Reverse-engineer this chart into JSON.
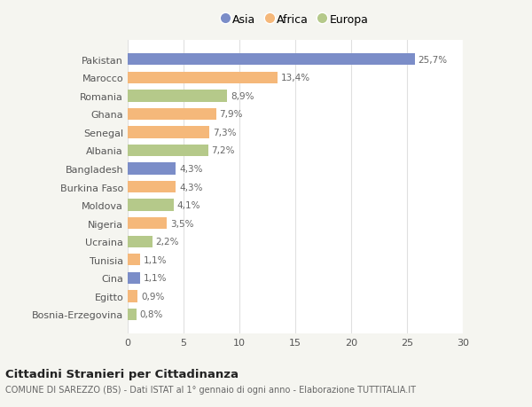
{
  "categories": [
    "Bosnia-Erzegovina",
    "Egitto",
    "Cina",
    "Tunisia",
    "Ucraina",
    "Nigeria",
    "Moldova",
    "Burkina Faso",
    "Bangladesh",
    "Albania",
    "Senegal",
    "Ghana",
    "Romania",
    "Marocco",
    "Pakistan"
  ],
  "values": [
    0.8,
    0.9,
    1.1,
    1.1,
    2.2,
    3.5,
    4.1,
    4.3,
    4.3,
    7.2,
    7.3,
    7.9,
    8.9,
    13.4,
    25.7
  ],
  "labels": [
    "0,8%",
    "0,9%",
    "1,1%",
    "1,1%",
    "2,2%",
    "3,5%",
    "4,1%",
    "4,3%",
    "4,3%",
    "7,2%",
    "7,3%",
    "7,9%",
    "8,9%",
    "13,4%",
    "25,7%"
  ],
  "colors": [
    "#b5c98a",
    "#f5b87a",
    "#7b8dc8",
    "#f5b87a",
    "#b5c98a",
    "#f5b87a",
    "#b5c98a",
    "#f5b87a",
    "#7b8dc8",
    "#b5c98a",
    "#f5b87a",
    "#f5b87a",
    "#b5c98a",
    "#f5b87a",
    "#7b8dc8"
  ],
  "legend": [
    {
      "label": "Asia",
      "color": "#7b8dc8"
    },
    {
      "label": "Africa",
      "color": "#f5b87a"
    },
    {
      "label": "Europa",
      "color": "#b5c98a"
    }
  ],
  "xlim": [
    0,
    30
  ],
  "xticks": [
    0,
    5,
    10,
    15,
    20,
    25,
    30
  ],
  "title": "Cittadini Stranieri per Cittadinanza",
  "subtitle": "COMUNE DI SAREZZO (BS) - Dati ISTAT al 1° gennaio di ogni anno - Elaborazione TUTTITALIA.IT",
  "background_color": "#f5f5f0",
  "bar_background": "#ffffff",
  "grid_color": "#e0e0e0"
}
